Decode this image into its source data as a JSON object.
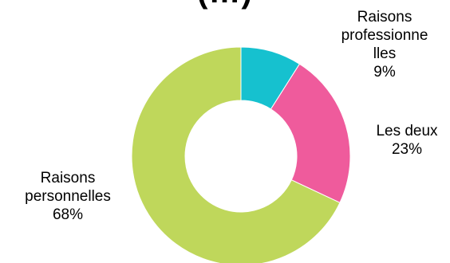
{
  "chart_data": {
    "type": "pie",
    "donut": true,
    "title": "(…)",
    "slices": [
      {
        "label_lines": [
          "Raisons",
          "professionne",
          "lles"
        ],
        "value": 9,
        "value_label": "9%",
        "color": "#16c1cf"
      },
      {
        "label_lines": [
          "Les deux"
        ],
        "value": 23,
        "value_label": "23%",
        "color": "#ef5b9c"
      },
      {
        "label_lines": [
          "Raisons",
          "personnelles"
        ],
        "value": 68,
        "value_label": "68%",
        "color": "#bfd75b"
      }
    ],
    "legend": "none"
  }
}
